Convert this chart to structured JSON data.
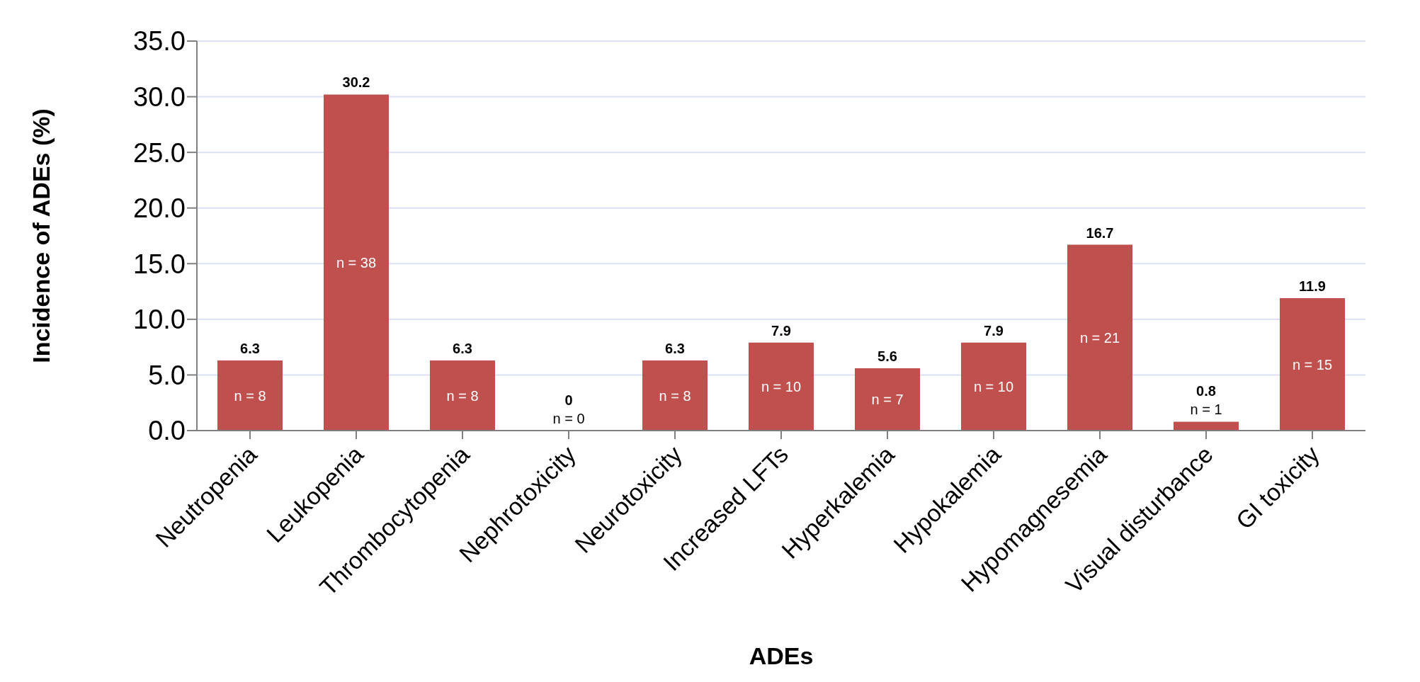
{
  "chart_data": {
    "type": "bar",
    "xlabel": "ADEs",
    "ylabel": "Incidence of ADEs (%)",
    "categories": [
      "Neutropenia",
      "Leukopenia",
      "Thrombocytopenia",
      "Nephrotoxicity",
      "Neurotoxicity",
      "Increased LFTs",
      "Hyperkalemia",
      "Hypokalemia",
      "Hypomagnesemia",
      "Visual disturbance",
      "GI toxicity"
    ],
    "values": [
      6.3,
      30.2,
      6.3,
      0,
      6.3,
      7.9,
      5.6,
      7.9,
      16.7,
      0.8,
      11.9
    ],
    "color": "#c0504d",
    "ylim": [
      0,
      35
    ],
    "yticks": [
      {
        "value": 0,
        "label": "0.0"
      },
      {
        "value": 5,
        "label": "5.0"
      },
      {
        "value": 10,
        "label": "10.0"
      },
      {
        "value": 15,
        "label": "15.0"
      },
      {
        "value": 20,
        "label": "20.0"
      },
      {
        "value": 25,
        "label": "25.0"
      },
      {
        "value": 30,
        "label": "30.0"
      },
      {
        "value": 35,
        "label": "35.0"
      }
    ],
    "grid": "y",
    "data_labels": true,
    "annotations": [
      "n = 8",
      "n = 38",
      "n = 8",
      "n = 0",
      "n = 8",
      "n = 10",
      "n = 7",
      "n = 10",
      "n = 21",
      "n = 1",
      "n = 15"
    ]
  }
}
